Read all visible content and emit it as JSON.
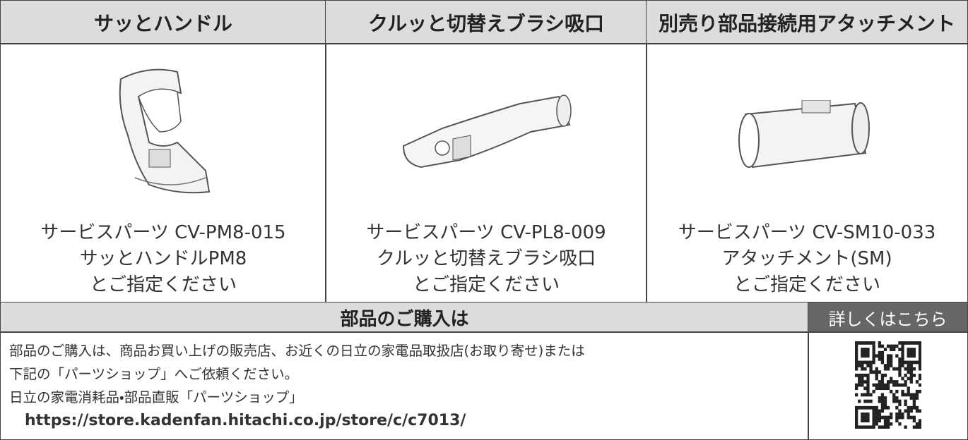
{
  "header": {
    "columns": [
      "サッとハンドル",
      "クルッと切替えブラシ吸口",
      "別売り部品接続用アタッチメント"
    ]
  },
  "products": [
    {
      "caption": [
        "サービスパーツ CV-PM8-015",
        "サッとハンドルPM8",
        "とご指定ください"
      ]
    },
    {
      "caption": [
        "サービスパーツ CV-PL8-009",
        "クルッと切替えブラシ吸口",
        "とご指定ください"
      ]
    },
    {
      "caption": [
        "サービスパーツ CV-SM10-033",
        "アタッチメント(SM)",
        "とご指定ください"
      ]
    }
  ],
  "purchase": {
    "title": "部品のご購入は",
    "link_label": "詳しくはこちら",
    "lines": [
      "部品のご購入は、商品お買い上げの販売店、お近くの日立の家電品取扱店(お取り寄せ)または",
      "下記の「パーツショップ」へご依頼ください。",
      "日立の家電消耗品・部品直販「パーツショップ」"
    ],
    "url": "https://store.kadenfan.hitachi.co.jp/store/c/c7013/"
  }
}
